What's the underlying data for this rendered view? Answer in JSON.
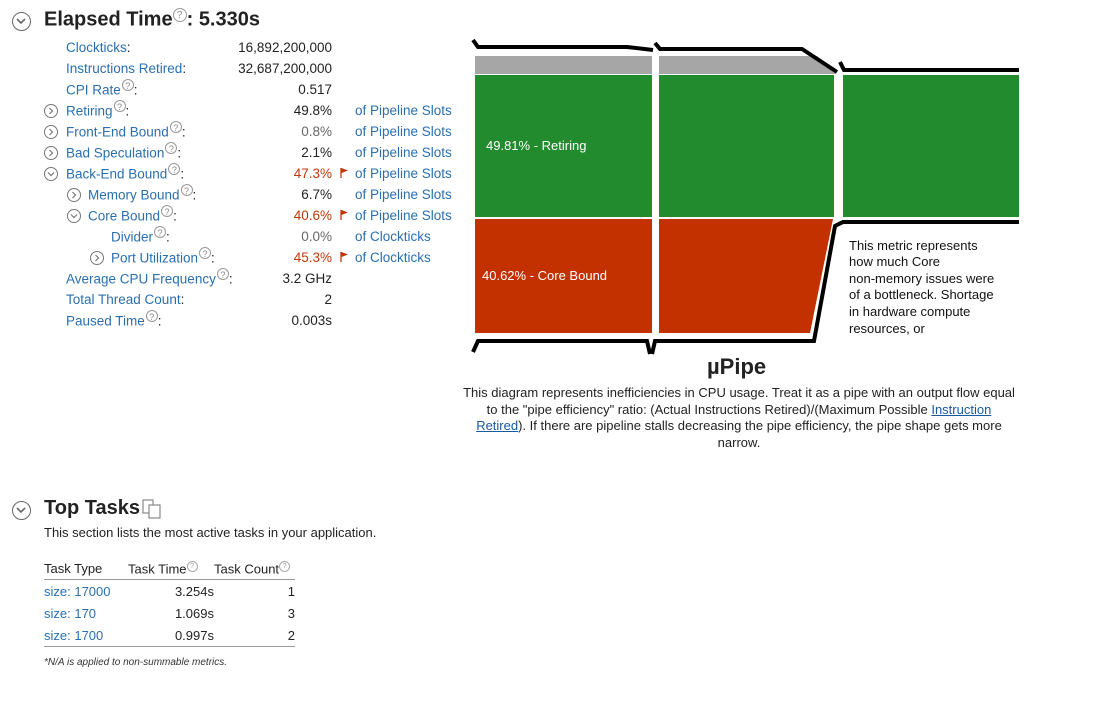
{
  "elapsed": {
    "title": "Elapsed Time",
    "colon": ":",
    "value": "5.330s"
  },
  "metrics": [
    {
      "label": "Clockticks",
      "suffix": ":",
      "value": "16,892,200,000",
      "unit": ""
    },
    {
      "label": "Instructions Retired",
      "suffix": ":",
      "value": "32,687,200,000",
      "unit": ""
    },
    {
      "label": "CPI Rate",
      "suffix": ":",
      "value": "0.517",
      "unit": ""
    },
    {
      "label": "Retiring",
      "suffix": ":",
      "value": "49.8%",
      "unit": "of Pipeline Slots"
    },
    {
      "label": "Front-End Bound",
      "suffix": ":",
      "value": "0.8%",
      "unit": "of Pipeline Slots"
    },
    {
      "label": "Bad Speculation",
      "suffix": ":",
      "value": "2.1%",
      "unit": "of Pipeline Slots"
    },
    {
      "label": "Back-End Bound",
      "suffix": ":",
      "value": "47.3%",
      "unit": "of Pipeline Slots"
    },
    {
      "label": "Memory Bound",
      "suffix": ":",
      "value": "6.7%",
      "unit": "of Pipeline Slots"
    },
    {
      "label": "Core Bound",
      "suffix": ":",
      "value": "40.6%",
      "unit": "of Pipeline Slots"
    },
    {
      "label": "Divider",
      "suffix": ":",
      "value": "0.0%",
      "unit": "of Clockticks"
    },
    {
      "label": "Port Utilization",
      "suffix": ":",
      "value": "45.3%",
      "unit": "of Clockticks"
    },
    {
      "label": "Average CPU Frequency",
      "suffix": ":",
      "value": "3.2 GHz",
      "unit": ""
    },
    {
      "label": "Total Thread Count",
      "suffix": ":",
      "value": "2",
      "unit": ""
    },
    {
      "label": "Paused Time",
      "suffix": ":",
      "value": "0.003s",
      "unit": ""
    }
  ],
  "pipe": {
    "retiring_label": "49.81% - Retiring",
    "core_label": "40.62% - Core Bound",
    "tooltip_lines": [
      "This metric represents",
      "how much Core",
      "non-memory issues were",
      "of a bottleneck. Shortage",
      "in hardware compute",
      "resources, or"
    ],
    "title": "µPipe",
    "caption_before": "This diagram represents inefficiencies in CPU usage. Treat it as a pipe with an output flow equal to the \"pipe efficiency\" ratio: (Actual Instructions Retired)/(Maximum Possible ",
    "caption_link": "Instruction Retired",
    "caption_after": "). If there are pipeline stalls decreasing the pipe efficiency, the pipe shape gets more narrow.",
    "colors": {
      "retiring": "#228b2d",
      "core": "#c33100",
      "grey": "#a6a6a6"
    }
  },
  "top_tasks": {
    "title": "Top Tasks",
    "description": "This section lists the most active tasks in your application.",
    "columns": [
      "Task Type",
      "Task Time",
      "Task Count"
    ],
    "rows": [
      {
        "type": "size: 17000",
        "time": "3.254s",
        "count": "1"
      },
      {
        "type": "size: 170",
        "time": "1.069s",
        "count": "3"
      },
      {
        "type": "size: 1700",
        "time": "0.997s",
        "count": "2"
      }
    ],
    "footnote": "*N/A is applied to non-summable metrics."
  }
}
